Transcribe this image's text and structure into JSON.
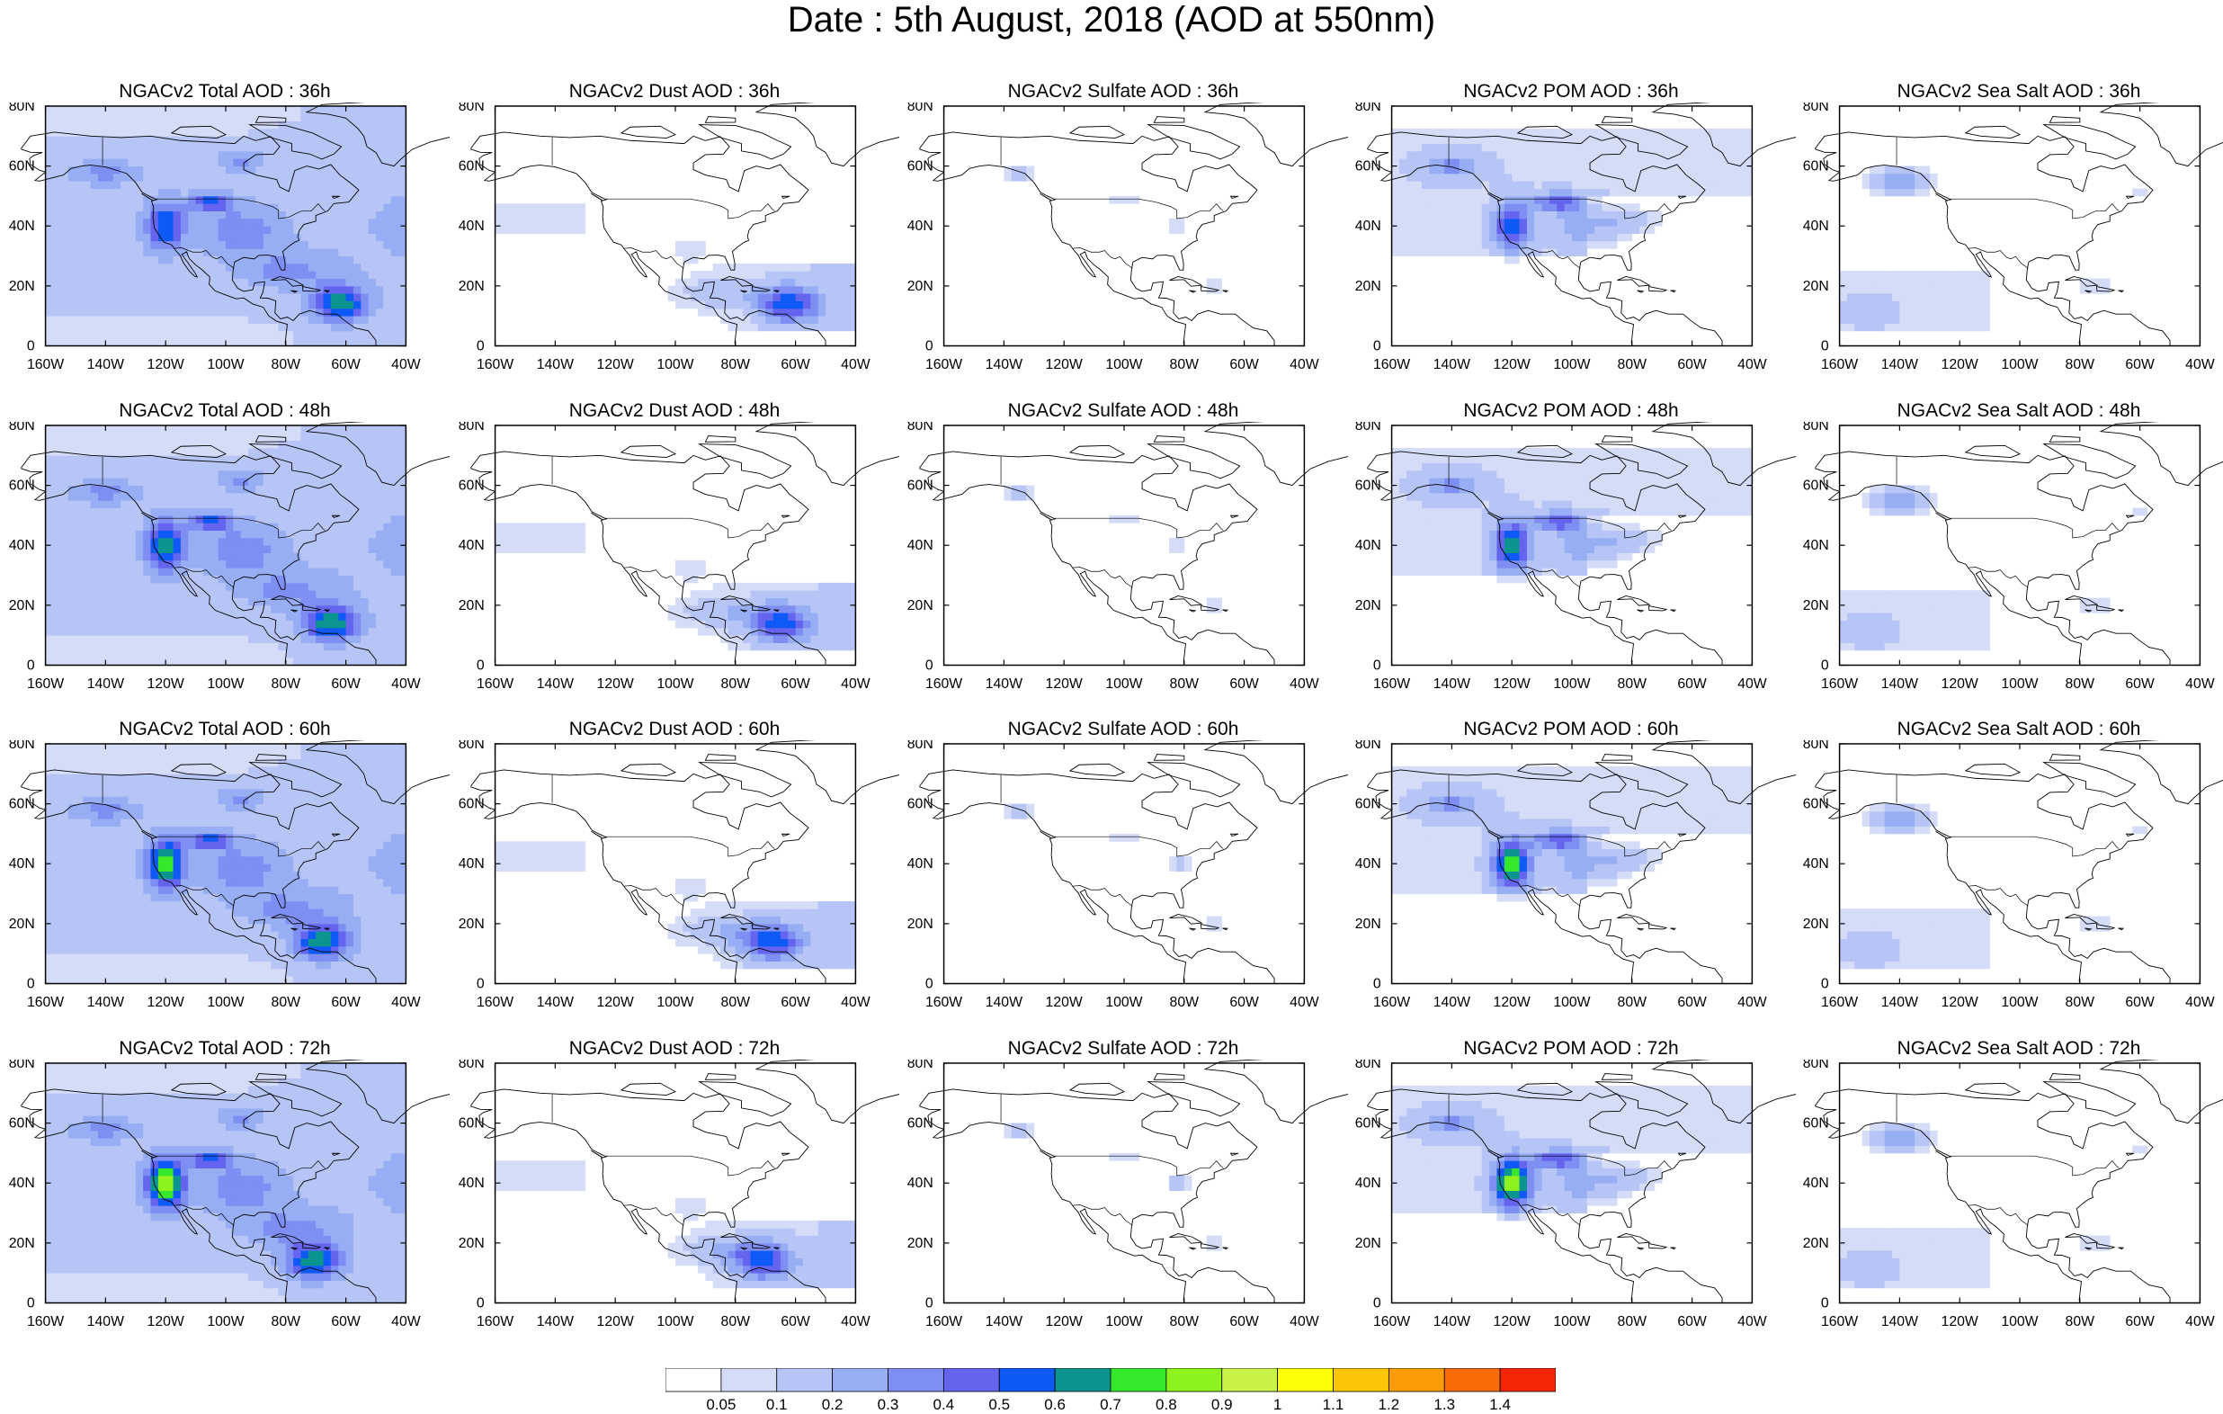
{
  "title": "Date : 5th August, 2018 (AOD at 550nm)",
  "panels": [
    {
      "title": "NGACv2 Total AOD : 36h",
      "kind": "total",
      "seed": 11
    },
    {
      "title": "NGACv2 Dust AOD : 36h",
      "kind": "dust",
      "seed": 12
    },
    {
      "title": "NGACv2 Sulfate AOD : 36h",
      "kind": "sulfate",
      "seed": 13
    },
    {
      "title": "NGACv2 POM AOD : 36h",
      "kind": "pom",
      "seed": 14
    },
    {
      "title": "NGACv2 Sea Salt AOD : 36h",
      "kind": "seasalt",
      "seed": 15
    },
    {
      "title": "NGACv2 Total AOD : 48h",
      "kind": "total",
      "seed": 21
    },
    {
      "title": "NGACv2 Dust AOD : 48h",
      "kind": "dust",
      "seed": 22
    },
    {
      "title": "NGACv2 Sulfate AOD : 48h",
      "kind": "sulfate",
      "seed": 23
    },
    {
      "title": "NGACv2 POM AOD : 48h",
      "kind": "pom",
      "seed": 24
    },
    {
      "title": "NGACv2 Sea Salt AOD : 48h",
      "kind": "seasalt",
      "seed": 25
    },
    {
      "title": "NGACv2 Total AOD : 60h",
      "kind": "total",
      "seed": 31
    },
    {
      "title": "NGACv2 Dust AOD : 60h",
      "kind": "dust",
      "seed": 32
    },
    {
      "title": "NGACv2 Sulfate AOD : 60h",
      "kind": "sulfate",
      "seed": 33
    },
    {
      "title": "NGACv2 POM AOD : 60h",
      "kind": "pom",
      "seed": 34
    },
    {
      "title": "NGACv2 Sea Salt AOD : 60h",
      "kind": "seasalt",
      "seed": 35
    },
    {
      "title": "NGACv2 Total AOD : 72h",
      "kind": "total",
      "seed": 41
    },
    {
      "title": "NGACv2 Dust AOD : 72h",
      "kind": "dust",
      "seed": 42
    },
    {
      "title": "NGACv2 Sulfate AOD : 72h",
      "kind": "sulfate",
      "seed": 43
    },
    {
      "title": "NGACv2 POM AOD : 72h",
      "kind": "pom",
      "seed": 44
    },
    {
      "title": "NGACv2 Sea Salt  AOD : 72h",
      "kind": "seasalt",
      "seed": 45
    }
  ],
  "x_ticks": [
    "160W",
    "140W",
    "120W",
    "100W",
    "80W",
    "60W",
    "40W"
  ],
  "y_ticks": [
    "0",
    "20N",
    "40N",
    "60N",
    "80N"
  ],
  "colorbar": {
    "levels": [
      "0.05",
      "0.1",
      "0.2",
      "0.3",
      "0.4",
      "0.5",
      "0.6",
      "0.7",
      "0.8",
      "0.9",
      "1",
      "1.1",
      "1.2",
      "1.3",
      "1.4"
    ],
    "colors": [
      "#ffffff",
      "#d4dcf8",
      "#b6c5f5",
      "#98aef4",
      "#7e8ef2",
      "#6464ee",
      "#0f5af7",
      "#0b9490",
      "#35e82c",
      "#8ef21f",
      "#c9f249",
      "#fdfd08",
      "#fbc607",
      "#fb9b06",
      "#f86b07",
      "#f52507"
    ]
  }
}
